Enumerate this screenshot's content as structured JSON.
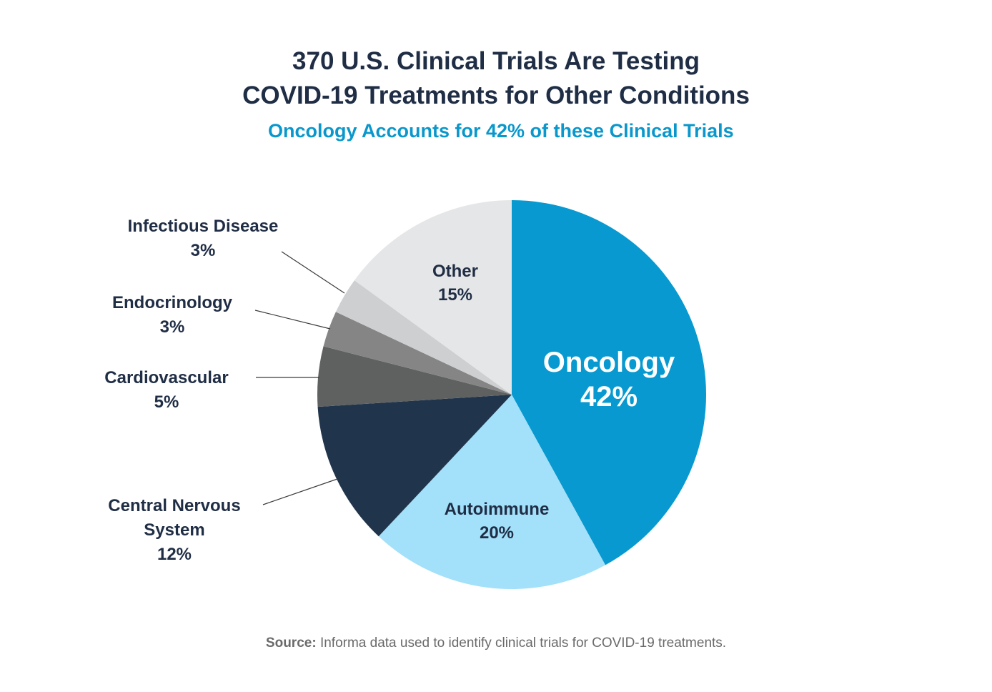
{
  "chart_data": {
    "type": "pie",
    "title_lines": [
      "370 U.S. Clinical Trials Are Testing",
      "COVID-19 Treatments for Other Conditions"
    ],
    "subtitle": "Oncology Accounts for 42% of these Clinical Trials",
    "slices": [
      {
        "label": "Oncology",
        "value": 42,
        "value_label": "42%",
        "color": "#0799d0"
      },
      {
        "label": "Autoimmune",
        "value": 20,
        "value_label": "20%",
        "color": "#a3e0f9"
      },
      {
        "label": "Central Nervous System",
        "label_lines": [
          "Central Nervous",
          "System"
        ],
        "value": 12,
        "value_label": "12%",
        "color": "#20344c"
      },
      {
        "label": "Cardiovascular",
        "value": 5,
        "value_label": "5%",
        "color": "#5f6161"
      },
      {
        "label": "Endocrinology",
        "value": 3,
        "value_label": "3%",
        "color": "#858585"
      },
      {
        "label": "Infectious Disease",
        "value": 3,
        "value_label": "3%",
        "color": "#cdcfd1"
      },
      {
        "label": "Other",
        "value": 15,
        "value_label": "15%",
        "color": "#e5e6e7"
      }
    ]
  },
  "source": {
    "prefix": "Source:",
    "text": " Informa data used to identify clinical trials for COVID-19 treatments."
  }
}
